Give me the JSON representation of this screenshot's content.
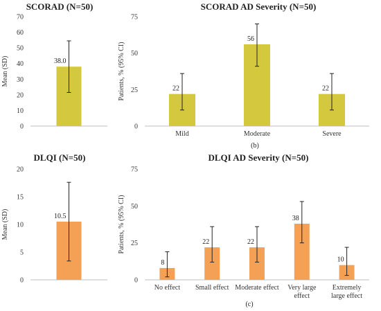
{
  "colors": {
    "scorad": "#d4c83e",
    "dlqi": "#f5a155",
    "axis": "#bfbfbf",
    "error": "#222222"
  },
  "captions": {
    "b": "(b)",
    "c": "(c)"
  },
  "chart_data": [
    {
      "id": "scorad-mean",
      "type": "bar",
      "title": "SCORAD (N=50)",
      "ylabel": "Mean (SD)",
      "xlabel": "",
      "ylim": [
        0,
        70
      ],
      "yticks": [
        0,
        10,
        20,
        30,
        40,
        50,
        60,
        70
      ],
      "categories": [
        ""
      ],
      "values": [
        38.0
      ],
      "value_labels": [
        "38.0"
      ],
      "error_low": [
        21.5
      ],
      "error_high": [
        54.5
      ],
      "color": "#d4c83e"
    },
    {
      "id": "scorad-severity",
      "type": "bar",
      "title": "SCORAD AD Severity (N=50)",
      "ylabel": "Patients, % (95% CI)",
      "xlabel": "",
      "ylim": [
        0,
        75
      ],
      "yticks": [
        0,
        25,
        50,
        75
      ],
      "categories": [
        "Mild",
        "Moderate",
        "Severe"
      ],
      "values": [
        22,
        56,
        22
      ],
      "value_labels": [
        "22",
        "56",
        "22"
      ],
      "error_low": [
        11,
        41,
        11
      ],
      "error_high": [
        36,
        70,
        36
      ],
      "color": "#d4c83e"
    },
    {
      "id": "dlqi-mean",
      "type": "bar",
      "title": "DLQI (N=50)",
      "ylabel": "Mean (SD)",
      "xlabel": "",
      "ylim": [
        0,
        20
      ],
      "yticks": [
        0,
        5,
        10,
        15,
        20
      ],
      "categories": [
        ""
      ],
      "values": [
        10.5
      ],
      "value_labels": [
        "10.5"
      ],
      "error_low": [
        3.4
      ],
      "error_high": [
        17.6
      ],
      "color": "#f5a155"
    },
    {
      "id": "dlqi-severity",
      "type": "bar",
      "title": "DLQI AD Severity (N=50)",
      "ylabel": "Patients, % (95% CI)",
      "xlabel": "",
      "ylim": [
        0,
        75
      ],
      "yticks": [
        0,
        25,
        50,
        75
      ],
      "categories": [
        [
          "No effect"
        ],
        [
          "Small effect"
        ],
        [
          "Moderate effect"
        ],
        [
          "Very large",
          "effect"
        ],
        [
          "Extremely",
          "large effect"
        ]
      ],
      "values": [
        8,
        22,
        22,
        38,
        10
      ],
      "value_labels": [
        "8",
        "22",
        "22",
        "38",
        "10"
      ],
      "error_low": [
        2,
        12,
        12,
        25,
        3
      ],
      "error_high": [
        19,
        36,
        36,
        53,
        22
      ],
      "color": "#f5a155"
    }
  ]
}
